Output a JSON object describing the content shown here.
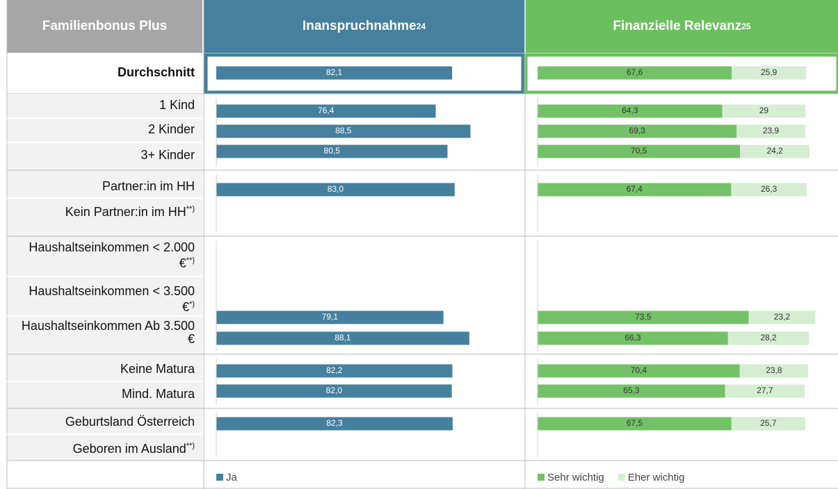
{
  "header": {
    "label": "Familienbonus Plus",
    "col1": "Inanspruchnahme",
    "col1_note": "24",
    "col2": "Finanzielle Relevanz",
    "col2_note": "25"
  },
  "chart_data": [
    {
      "type": "bar",
      "orientation": "horizontal",
      "categories": [
        "Durchschnitt",
        "1 Kind",
        "2 Kinder",
        "3+ Kinder",
        "Partner:in im HH",
        "Kein Partner:in im HH",
        "Haushaltseinkommen < 2.000 €",
        "Haushaltseinkommen < 3.500 €",
        "Haushaltseinkommen Ab 3.500 €",
        "Keine Matura",
        "Mind. Matura",
        "Geburtsland Österreich",
        "Geboren im Ausland"
      ],
      "category_notes": [
        null,
        null,
        null,
        null,
        null,
        "**)",
        "**)",
        "*)",
        null,
        null,
        null,
        null,
        "**)"
      ],
      "xlim": [
        0,
        100
      ],
      "series": [
        {
          "name": "Ja",
          "color": "#45809e",
          "values": [
            82.1,
            76.4,
            88.5,
            80.5,
            83.0,
            null,
            null,
            79.1,
            88.1,
            82.2,
            82.0,
            82.3,
            null
          ],
          "value_labels": [
            "82,1",
            "76,4",
            "88,5",
            "80,5",
            "83,0",
            null,
            null,
            "79,1",
            "88,1",
            "82,2",
            "82,0",
            "82,3",
            null
          ]
        }
      ]
    },
    {
      "type": "stacked_bar",
      "orientation": "horizontal",
      "xlim": [
        0,
        100
      ],
      "series": [
        {
          "name": "Sehr wichtig",
          "color": "#74c267",
          "values": [
            67.6,
            64.3,
            69.3,
            70.5,
            67.4,
            null,
            null,
            73.5,
            66.3,
            70.4,
            65.3,
            67.5,
            null
          ],
          "value_labels": [
            "67,6",
            "64,3",
            "69,3",
            "70,5",
            "67,4",
            null,
            null,
            "73,5",
            "66,3",
            "70,4",
            "65,3",
            "67,5",
            null
          ]
        },
        {
          "name": "Eher wichtig",
          "color": "#d5eed1",
          "values": [
            25.9,
            29,
            23.9,
            24.2,
            26.3,
            null,
            null,
            23.2,
            28.2,
            23.8,
            27.7,
            25.7,
            null
          ],
          "value_labels": [
            "25,9",
            "29",
            "23,9",
            "24,2",
            "26,3",
            null,
            null,
            "23,2",
            "28,2",
            "23,8",
            "27,7",
            "25,7",
            null
          ]
        }
      ]
    }
  ]
}
